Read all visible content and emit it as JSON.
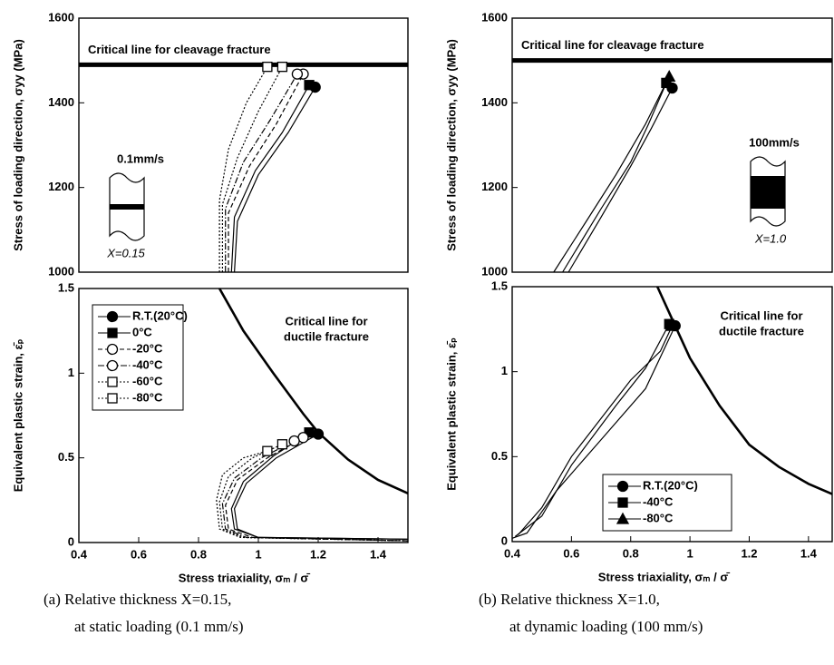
{
  "chart_data": [
    {
      "type": "line",
      "xlim": [
        0.4,
        1.5
      ],
      "ylim": [
        1000,
        1600
      ],
      "yticks": [
        1000,
        1200,
        1400,
        1600
      ],
      "ylabel": "Stress of loading direction, σyy (MPa)",
      "critical_line": {
        "label": "Critical line for cleavage fracture",
        "value": 1490
      },
      "inset": {
        "speed": "0.1mm/s",
        "thickness": "X=0.15"
      },
      "series": [
        {
          "color": "#000",
          "dash": "solid",
          "marker": "circle",
          "filled": true,
          "x": [
            0.92,
            0.93,
            1.0,
            1.1,
            1.19
          ],
          "values": [
            1000,
            1120,
            1230,
            1330,
            1437
          ]
        },
        {
          "color": "#000",
          "dash": "solid",
          "marker": "square",
          "filled": true,
          "x": [
            0.91,
            0.92,
            0.99,
            1.08,
            1.17
          ],
          "values": [
            1000,
            1130,
            1240,
            1330,
            1442
          ]
        },
        {
          "color": "#000",
          "dash": "dashed",
          "marker": "circle",
          "filled": false,
          "x": [
            0.9,
            0.9,
            0.97,
            1.06,
            1.15
          ],
          "values": [
            1000,
            1140,
            1250,
            1350,
            1468
          ]
        },
        {
          "color": "#000",
          "dash": "dashdot",
          "marker": "circle",
          "filled": false,
          "x": [
            0.89,
            0.89,
            0.95,
            1.04,
            1.13
          ],
          "values": [
            1000,
            1150,
            1260,
            1360,
            1468
          ]
        },
        {
          "color": "#000",
          "dash": "dotted",
          "marker": "square",
          "filled": false,
          "x": [
            0.88,
            0.88,
            0.93,
            1.0,
            1.08
          ],
          "values": [
            1000,
            1160,
            1270,
            1380,
            1485
          ]
        },
        {
          "color": "#000",
          "dash": "dotted",
          "marker": "square",
          "filled": false,
          "x": [
            0.87,
            0.87,
            0.9,
            0.96,
            1.03
          ],
          "values": [
            1000,
            1170,
            1290,
            1400,
            1485
          ]
        }
      ]
    },
    {
      "type": "line",
      "xlim": [
        0.4,
        1.5
      ],
      "ylim": [
        0,
        1.5
      ],
      "yticks": [
        0,
        0.5,
        1,
        1.5
      ],
      "xticks": [
        0.4,
        0.6,
        0.8,
        1,
        1.2,
        1.4
      ],
      "xlabel": "Stress triaxiality, σₘ / σ̄",
      "ylabel": "Equivalent plastic strain, ε̄ₚ",
      "critical_line": {
        "label": [
          "Critical line for",
          "ductile fracture"
        ],
        "x": [
          0.87,
          0.95,
          1.05,
          1.15,
          1.2,
          1.3,
          1.4,
          1.5
        ],
        "values": [
          1.5,
          1.25,
          1.0,
          0.76,
          0.65,
          0.49,
          0.37,
          0.29
        ]
      },
      "legend": "upper left",
      "series": [
        {
          "name": "R.T.(20°C)",
          "color": "#000",
          "dash": "solid",
          "marker": "circle",
          "filled": true,
          "x": [
            1.5,
            1.0,
            0.93,
            0.92,
            0.96,
            1.06,
            1.2
          ],
          "values": [
            0.02,
            0.03,
            0.08,
            0.2,
            0.35,
            0.5,
            0.64
          ]
        },
        {
          "name": "0°C",
          "color": "#000",
          "dash": "solid",
          "marker": "square",
          "filled": true,
          "x": [
            1.5,
            1.0,
            0.92,
            0.91,
            0.95,
            1.05,
            1.17
          ],
          "values": [
            0.02,
            0.03,
            0.08,
            0.2,
            0.36,
            0.51,
            0.65
          ]
        },
        {
          "name": "-20°C",
          "color": "#000",
          "dash": "dashed",
          "marker": "circle",
          "filled": false,
          "x": [
            1.5,
            0.98,
            0.9,
            0.89,
            0.93,
            1.03,
            1.15
          ],
          "values": [
            0.01,
            0.03,
            0.08,
            0.22,
            0.37,
            0.5,
            0.62
          ]
        },
        {
          "name": "-40°C",
          "color": "#000",
          "dash": "dashdot",
          "marker": "circle",
          "filled": false,
          "x": [
            1.5,
            0.96,
            0.89,
            0.88,
            0.92,
            1.01,
            1.12
          ],
          "values": [
            0.01,
            0.03,
            0.08,
            0.23,
            0.38,
            0.5,
            0.6
          ]
        },
        {
          "name": "-60°C",
          "color": "#000",
          "dash": "dotted",
          "marker": "square",
          "filled": false,
          "x": [
            1.5,
            0.95,
            0.88,
            0.87,
            0.9,
            0.98,
            1.08
          ],
          "values": [
            0.01,
            0.03,
            0.08,
            0.24,
            0.39,
            0.5,
            0.58
          ]
        },
        {
          "name": "-80°C",
          "color": "#000",
          "dash": "dotted",
          "marker": "square",
          "filled": false,
          "x": [
            1.5,
            0.94,
            0.87,
            0.86,
            0.88,
            0.95,
            1.03
          ],
          "values": [
            0.01,
            0.03,
            0.08,
            0.25,
            0.4,
            0.5,
            0.54
          ]
        }
      ]
    },
    {
      "type": "line",
      "xlim": [
        0.4,
        1.48
      ],
      "ylim": [
        1000,
        1600
      ],
      "yticks": [
        1000,
        1200,
        1400,
        1600
      ],
      "ylabel": "Stress of loading direction, σyy (MPa)",
      "critical_line": {
        "label": "Critical line for cleavage fracture",
        "value": 1500
      },
      "inset": {
        "speed": "100mm/s",
        "thickness": "X=1.0"
      },
      "series": [
        {
          "color": "#000",
          "dash": "solid",
          "marker": "circle",
          "filled": true,
          "x": [
            0.59,
            0.7,
            0.8,
            0.87,
            0.94
          ],
          "values": [
            1000,
            1130,
            1250,
            1340,
            1435
          ]
        },
        {
          "color": "#000",
          "dash": "solid",
          "marker": "square",
          "filled": true,
          "x": [
            0.57,
            0.7,
            0.8,
            0.86,
            0.92
          ],
          "values": [
            1000,
            1150,
            1260,
            1350,
            1447
          ]
        },
        {
          "color": "#000",
          "dash": "solid",
          "marker": "triangle",
          "filled": true,
          "x": [
            0.54,
            0.65,
            0.75,
            0.85,
            0.93
          ],
          "values": [
            1000,
            1120,
            1230,
            1350,
            1462
          ]
        }
      ]
    },
    {
      "type": "line",
      "xlim": [
        0.4,
        1.48
      ],
      "ylim": [
        0,
        1.5
      ],
      "yticks": [
        0,
        0.5,
        1,
        1.5
      ],
      "xticks": [
        0.4,
        0.6,
        0.8,
        1,
        1.2,
        1.4
      ],
      "xlabel": "Stress triaxiality, σₘ / σ̄",
      "ylabel": "Equivalent plastic strain, ε̄ₚ",
      "critical_line": {
        "label": [
          "Critical line for",
          "ductile fracture"
        ],
        "x": [
          0.89,
          0.95,
          1.0,
          1.1,
          1.2,
          1.3,
          1.4,
          1.48
        ],
        "values": [
          1.5,
          1.27,
          1.08,
          0.8,
          0.57,
          0.44,
          0.34,
          0.28
        ]
      },
      "legend": "lower center",
      "series": [
        {
          "name": "R.T.(20°C)",
          "color": "#000",
          "dash": "solid",
          "marker": "circle",
          "filled": true,
          "x": [
            0.4,
            0.45,
            0.55,
            0.7,
            0.85,
            0.95
          ],
          "values": [
            0.02,
            0.05,
            0.3,
            0.6,
            0.9,
            1.27
          ]
        },
        {
          "name": "-40°C",
          "color": "#000",
          "dash": "solid",
          "marker": "square",
          "filled": true,
          "x": [
            0.41,
            0.5,
            0.6,
            0.75,
            0.85,
            0.93
          ],
          "values": [
            0.03,
            0.15,
            0.45,
            0.8,
            1.02,
            1.28
          ]
        },
        {
          "name": "-80°C",
          "color": "#000",
          "dash": "solid",
          "marker": "triangle",
          "filled": true,
          "x": [
            0.42,
            0.5,
            0.6,
            0.8,
            0.9,
            0.94
          ],
          "values": [
            0.04,
            0.2,
            0.5,
            0.95,
            1.12,
            1.27
          ]
        }
      ]
    }
  ],
  "captions": [
    [
      "(a) Relative thickness  X=0.15,",
      "at static loading (0.1 mm/s)"
    ],
    [
      "(b) Relative thickness  X=1.0,",
      "at dynamic loading (100 mm/s)"
    ]
  ]
}
